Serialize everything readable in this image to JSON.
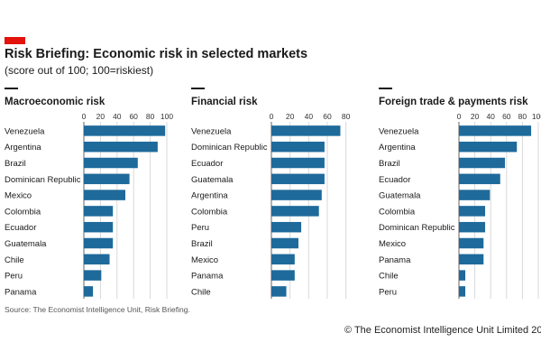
{
  "header": {
    "title": "Risk Briefing: Economic risk in selected markets",
    "subtitle": "(score out of 100; 100=riskiest)"
  },
  "footer": {
    "source": "Source: The Economist Intelligence Unit, Risk Briefing.",
    "copyright": "© The Economist Intelligence Unit Limited 20"
  },
  "colors": {
    "bar": "#1e6a9a",
    "brand": "#e3120b",
    "axis": "#666666",
    "grid": "#d9d9d9"
  },
  "chart_data": [
    {
      "type": "bar",
      "orientation": "horizontal",
      "title": "Macroeconomic risk",
      "ticks": [
        0,
        20,
        40,
        60,
        80,
        100
      ],
      "xlim": [
        0,
        100
      ],
      "categories": [
        "Venezuela",
        "Argentina",
        "Brazil",
        "Dominican Republic",
        "Mexico",
        "Colombia",
        "Ecuador",
        "Guatemala",
        "Chile",
        "Peru",
        "Panama"
      ],
      "values": [
        98,
        89,
        65,
        55,
        50,
        35,
        35,
        35,
        31,
        21,
        11
      ]
    },
    {
      "type": "bar",
      "orientation": "horizontal",
      "title": "Financial risk",
      "ticks": [
        0,
        20,
        40,
        60,
        80
      ],
      "xlim": [
        0,
        90
      ],
      "categories": [
        "Venezuela",
        "Dominican Republic",
        "Ecuador",
        "Guatemala",
        "Argentina",
        "Colombia",
        "Peru",
        "Brazil",
        "Mexico",
        "Panama",
        "Chile"
      ],
      "values": [
        74,
        57,
        57,
        57,
        54,
        51,
        32,
        29,
        25,
        25,
        16
      ]
    },
    {
      "type": "bar",
      "orientation": "horizontal",
      "title": "Foreign trade & payments risk",
      "ticks": [
        0,
        20,
        40,
        60,
        80,
        100
      ],
      "xlim": [
        0,
        100
      ],
      "categories": [
        "Venezuela",
        "Argentina",
        "Brazil",
        "Ecuador",
        "Guatemala",
        "Colombia",
        "Dominican Republic",
        "Mexico",
        "Panama",
        "Chile",
        "Peru"
      ],
      "values": [
        91,
        73,
        58,
        52,
        39,
        33,
        33,
        31,
        31,
        8,
        8
      ]
    }
  ]
}
